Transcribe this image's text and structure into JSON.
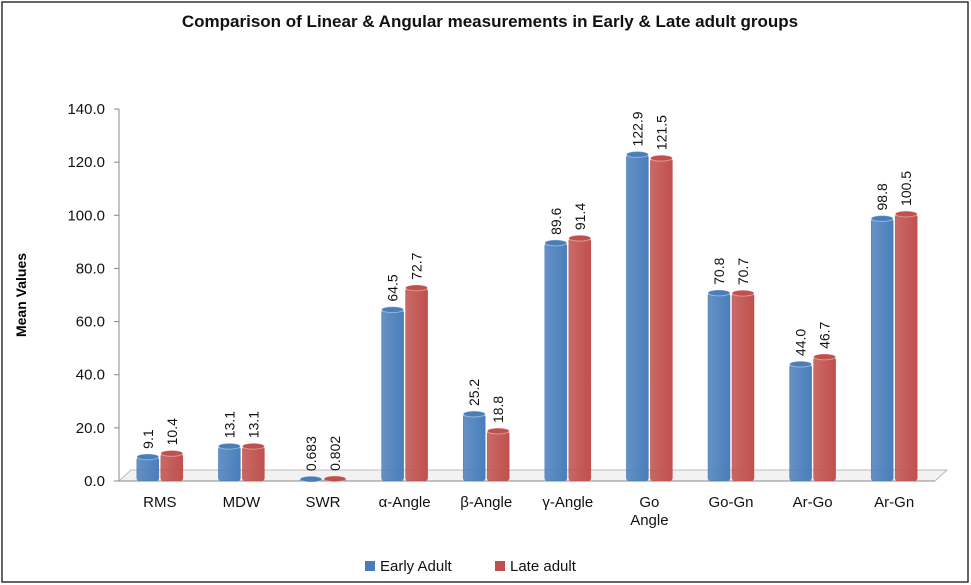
{
  "chart_data": {
    "type": "bar",
    "title": "Comparison of Linear & Angular measurements in Early & Late adult groups",
    "y_label": "Mean Values",
    "categories": [
      "RMS",
      "MDW",
      "SWR",
      "α-Angle",
      "β-Angle",
      "γ-Angle",
      "Go\nAngle",
      "Go-Gn",
      "Ar-Go",
      "Ar-Gn"
    ],
    "series": [
      {
        "name": "Early Adult",
        "color": "#4a7ebb",
        "values": [
          9.1,
          13.1,
          0.683,
          64.5,
          25.2,
          89.6,
          122.9,
          70.8,
          44.0,
          98.8
        ],
        "value_labels": [
          "9.1",
          "13.1",
          "0.683",
          "64.5",
          "25.2",
          "89.6",
          "122.9",
          "70.8",
          "44.0",
          "98.8"
        ]
      },
      {
        "name": "Late adult",
        "color": "#c0504d",
        "values": [
          10.4,
          13.1,
          0.802,
          72.7,
          18.8,
          91.4,
          121.5,
          70.7,
          46.7,
          100.5
        ],
        "value_labels": [
          "10.4",
          "13.1",
          "0.802",
          "72.7",
          "18.8",
          "91.4",
          "121.5",
          "70.7",
          "46.7",
          "100.5"
        ]
      }
    ],
    "ylim": [
      0,
      140
    ],
    "yticks": [
      {
        "value": 0,
        "label": "0.0"
      },
      {
        "value": 20,
        "label": "20.0"
      },
      {
        "value": 40,
        "label": "40.0"
      },
      {
        "value": 60,
        "label": "60.0"
      },
      {
        "value": 80,
        "label": "80.0"
      },
      {
        "value": 100,
        "label": "100.0"
      },
      {
        "value": 120,
        "label": "120.0"
      },
      {
        "value": 140,
        "label": "140.0"
      }
    ],
    "grid": false,
    "legend": "bottom"
  }
}
